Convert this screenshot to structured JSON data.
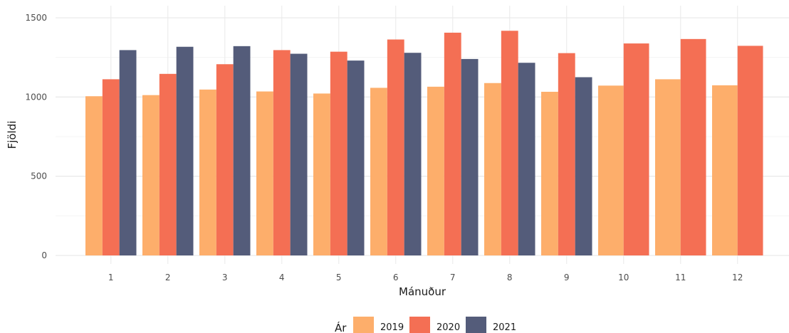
{
  "chart_data": {
    "type": "bar",
    "xlabel": "Mánuður",
    "ylabel": "Fjöldi",
    "ylim": [
      0,
      1500
    ],
    "yticks": [
      0,
      500,
      1000,
      1500
    ],
    "grid": true,
    "legend": {
      "title": "Ár",
      "position": "bottom"
    },
    "categories": [
      "1",
      "2",
      "3",
      "4",
      "5",
      "6",
      "7",
      "8",
      "9",
      "10",
      "11",
      "12"
    ],
    "series": [
      {
        "name": "2019",
        "color": "#FDAE6B",
        "values": [
          1005,
          1012,
          1047,
          1035,
          1022,
          1058,
          1065,
          1088,
          1033,
          1072,
          1112,
          1074
        ]
      },
      {
        "name": "2020",
        "color": "#F46F54",
        "values": [
          1112,
          1146,
          1207,
          1296,
          1286,
          1363,
          1406,
          1418,
          1277,
          1338,
          1366,
          1323
        ]
      },
      {
        "name": "2021",
        "color": "#545C7A",
        "values": [
          1296,
          1317,
          1321,
          1273,
          1230,
          1279,
          1240,
          1216,
          1125,
          null,
          null,
          null
        ]
      }
    ]
  }
}
